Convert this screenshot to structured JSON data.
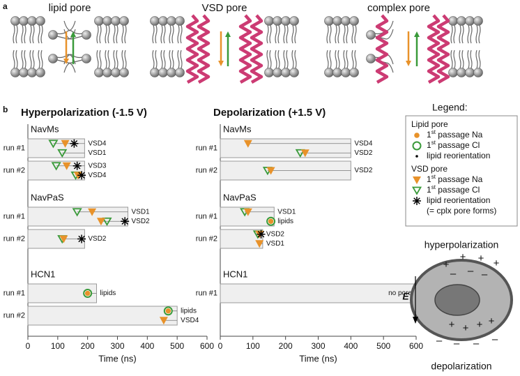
{
  "panel_a": {
    "label": "a",
    "titles": [
      "lipid pore",
      "VSD pore",
      "complex pore"
    ]
  },
  "panel_b": {
    "label": "b",
    "xlabel": "Time (ns)",
    "xlim": [
      0,
      600
    ],
    "xticks": [
      0,
      100,
      200,
      300,
      400,
      500,
      600
    ],
    "charts": [
      {
        "title": "Hyperpolarization (-1.5 V)",
        "systems": [
          {
            "name": "NavMs",
            "runs": [
              {
                "label": "run #1",
                "end": 190,
                "rows": [
                  {
                    "label": "VSD4",
                    "pore": "vsd",
                    "cl": 85,
                    "na": 125,
                    "reorient": 155
                  },
                  {
                    "label": "VSD1",
                    "pore": "vsd",
                    "cl": 115
                  }
                ]
              },
              {
                "label": "run #2",
                "end": 190,
                "rows": [
                  {
                    "label": "VSD3",
                    "pore": "vsd",
                    "cl": 95,
                    "na": 130,
                    "reorient": 165
                  },
                  {
                    "label": "VSD4",
                    "pore": "vsd",
                    "cl": 160,
                    "na": 168,
                    "reorient": 180
                  }
                ]
              }
            ]
          },
          {
            "name": "NavPaS",
            "runs": [
              {
                "label": "run #1",
                "end": 335,
                "rows": [
                  {
                    "label": "VSD1",
                    "pore": "vsd",
                    "cl": 165,
                    "na": 215
                  },
                  {
                    "label": "VSD2",
                    "pore": "vsd",
                    "na": 245,
                    "cl": 265,
                    "reorient": 325
                  }
                ]
              },
              {
                "label": "run #2",
                "end": 190,
                "rows": [
                  {
                    "label": "VSD2",
                    "pore": "vsd",
                    "cl": 115,
                    "na": 120,
                    "reorient": 180
                  }
                ]
              }
            ]
          },
          {
            "name": "HCN1",
            "runs": [
              {
                "label": "run #1",
                "end": 230,
                "rows": [
                  {
                    "label": "lipids",
                    "pore": "lipid",
                    "cl": 200,
                    "na": 200
                  }
                ]
              },
              {
                "label": "run #2",
                "end": 500,
                "rows": [
                  {
                    "label": "lipids",
                    "pore": "lipid",
                    "cl": 470,
                    "na": 470
                  },
                  {
                    "label": "VSD4",
                    "pore": "vsd",
                    "na": 455
                  }
                ]
              }
            ]
          }
        ]
      },
      {
        "title": "Depolarization (+1.5 V)",
        "systems": [
          {
            "name": "NavMs",
            "runs": [
              {
                "label": "run #1",
                "end": 400,
                "rows": [
                  {
                    "label": "VSD4",
                    "pore": "vsd",
                    "na": 85
                  },
                  {
                    "label": "VSD2",
                    "pore": "vsd",
                    "cl": 245,
                    "na": 260
                  }
                ]
              },
              {
                "label": "run #2",
                "end": 400,
                "rows": [
                  {
                    "label": "VSD2",
                    "pore": "vsd",
                    "cl": 145,
                    "na": 155
                  }
                ]
              }
            ]
          },
          {
            "name": "NavPaS",
            "runs": [
              {
                "label": "run #1",
                "end": 165,
                "rows": [
                  {
                    "label": "VSD1",
                    "pore": "vsd",
                    "cl": 75,
                    "na": 85
                  },
                  {
                    "label": "lipids",
                    "pore": "lipid",
                    "cl": 155,
                    "na": 155
                  }
                ]
              },
              {
                "label": "run #2",
                "end": 130,
                "rows": [
                  {
                    "label": "VSD2",
                    "pore": "vsd",
                    "cl": 115,
                    "na": 120,
                    "reorient": 125
                  },
                  {
                    "label": "VSD1",
                    "pore": "vsd",
                    "na": 120
                  }
                ]
              }
            ]
          },
          {
            "name": "HCN1",
            "runs": [
              {
                "label": "run #1",
                "end": 600,
                "rows": [
                  {
                    "label": "no pore"
                  }
                ]
              }
            ]
          }
        ]
      }
    ]
  },
  "legend": {
    "title": "Legend:",
    "groups": [
      {
        "title": "Lipid pore",
        "pore": "lipid",
        "items": [
          {
            "kind": "na",
            "label": "1st passage Na"
          },
          {
            "kind": "cl",
            "label": "1st passage Cl"
          },
          {
            "kind": "reorient",
            "label": "lipid reorientation"
          }
        ]
      },
      {
        "title": "VSD pore",
        "pore": "vsd",
        "items": [
          {
            "kind": "na",
            "label": "1st passage Na"
          },
          {
            "kind": "cl",
            "label": "1st passage Cl"
          },
          {
            "kind": "reorient",
            "label": "lipid reorientation",
            "note": "(= cplx pore forms)"
          }
        ]
      }
    ]
  },
  "panel_c": {
    "top": "hyperpolarization",
    "bottom": "depolarization",
    "field": "E",
    "signs": [
      "+",
      "+",
      "+",
      "+",
      "–",
      "–",
      "–",
      "+",
      "+",
      "+",
      "+",
      "–",
      "–",
      "–",
      "–"
    ]
  }
}
